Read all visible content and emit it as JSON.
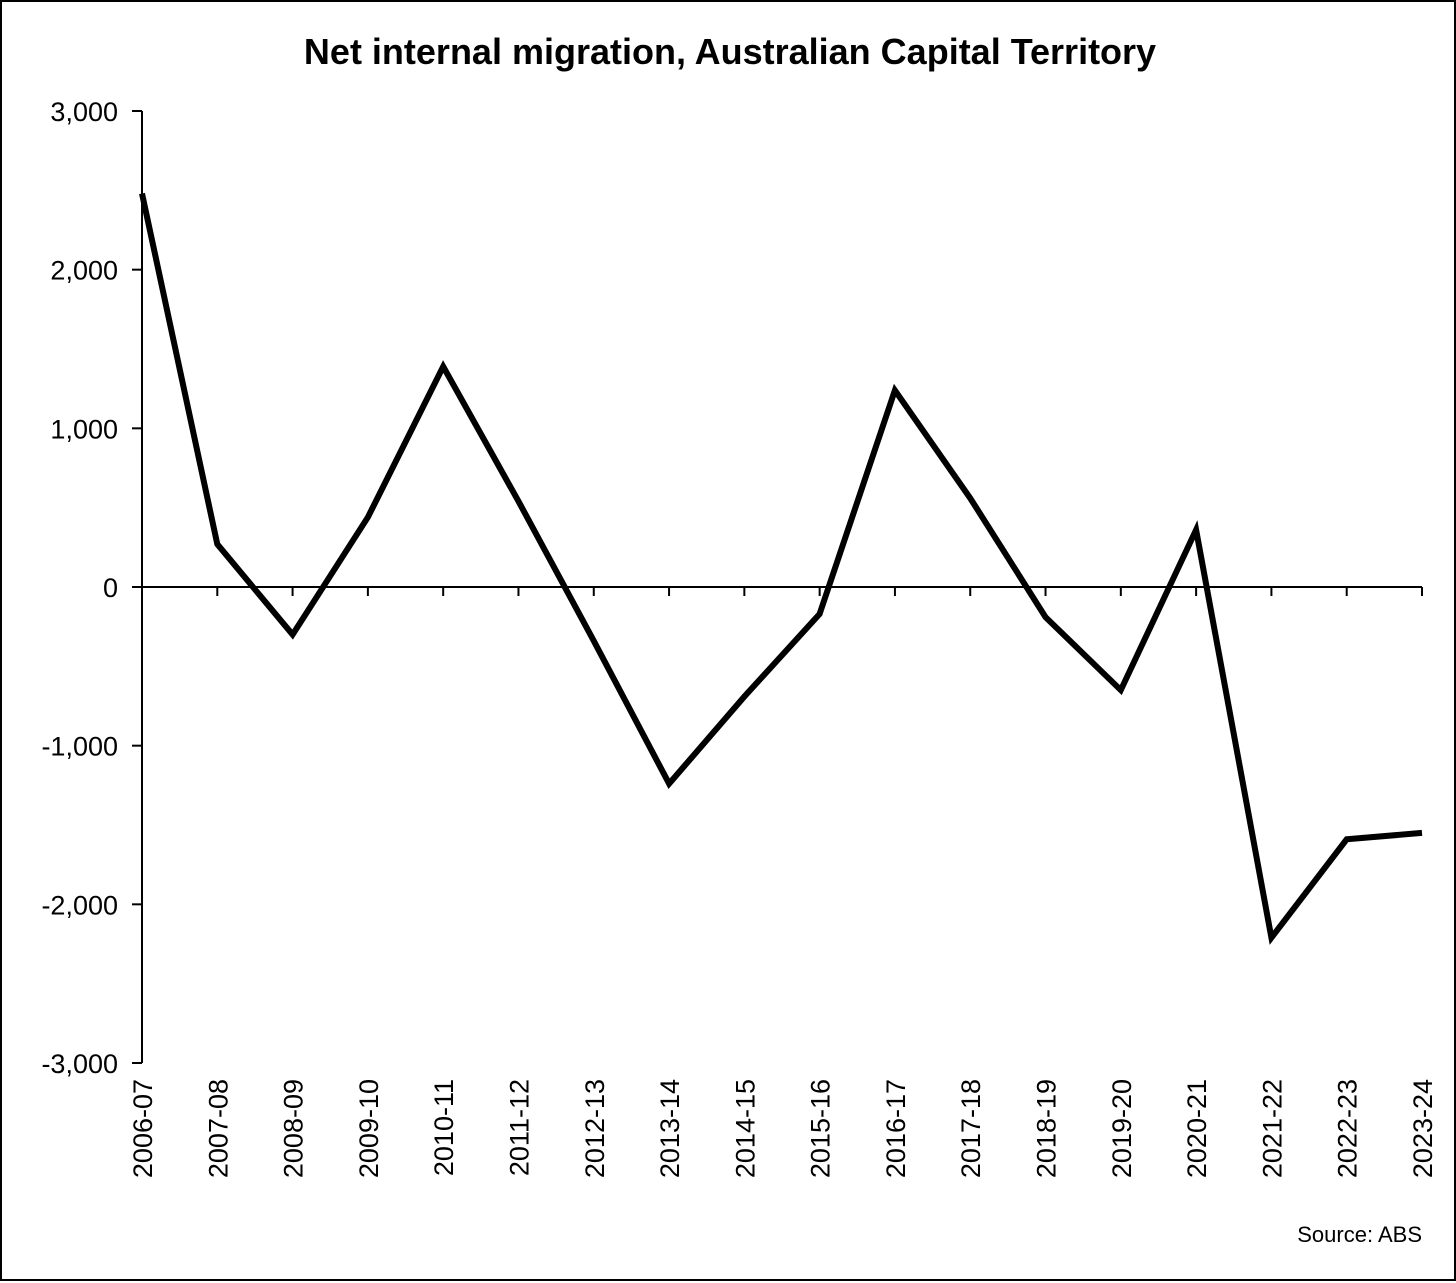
{
  "chart_data": {
    "type": "line",
    "title": "Net internal migration, Australian Capital Territory",
    "xlabel": "",
    "ylabel": "",
    "source": "Source: ABS",
    "categories": [
      "2006-07",
      "2007-08",
      "2008-09",
      "2009-10",
      "2010-11",
      "2011-12",
      "2012-13",
      "2013-14",
      "2014-15",
      "2015-16",
      "2016-17",
      "2017-18",
      "2018-19",
      "2019-20",
      "2020-21",
      "2021-22",
      "2022-23",
      "2023-24"
    ],
    "series": [
      {
        "values": [
          2480,
          270,
          -300,
          440,
          1390,
          540,
          -340,
          -1240,
          -690,
          -170,
          1240,
          560,
          -190,
          -650,
          360,
          -2210,
          -1590,
          -1550
        ]
      }
    ],
    "ylim": [
      -3000,
      3000
    ],
    "yticks": [
      3000,
      2000,
      1000,
      0,
      -1000,
      -2000,
      -3000
    ],
    "ytick_labels": [
      "3,000",
      "2,000",
      "1,000",
      "0",
      "-1,000",
      "-2,000",
      "-3,000"
    ],
    "grid": false,
    "legend": "none",
    "line_color": "#000000",
    "axis_color": "#000000"
  }
}
